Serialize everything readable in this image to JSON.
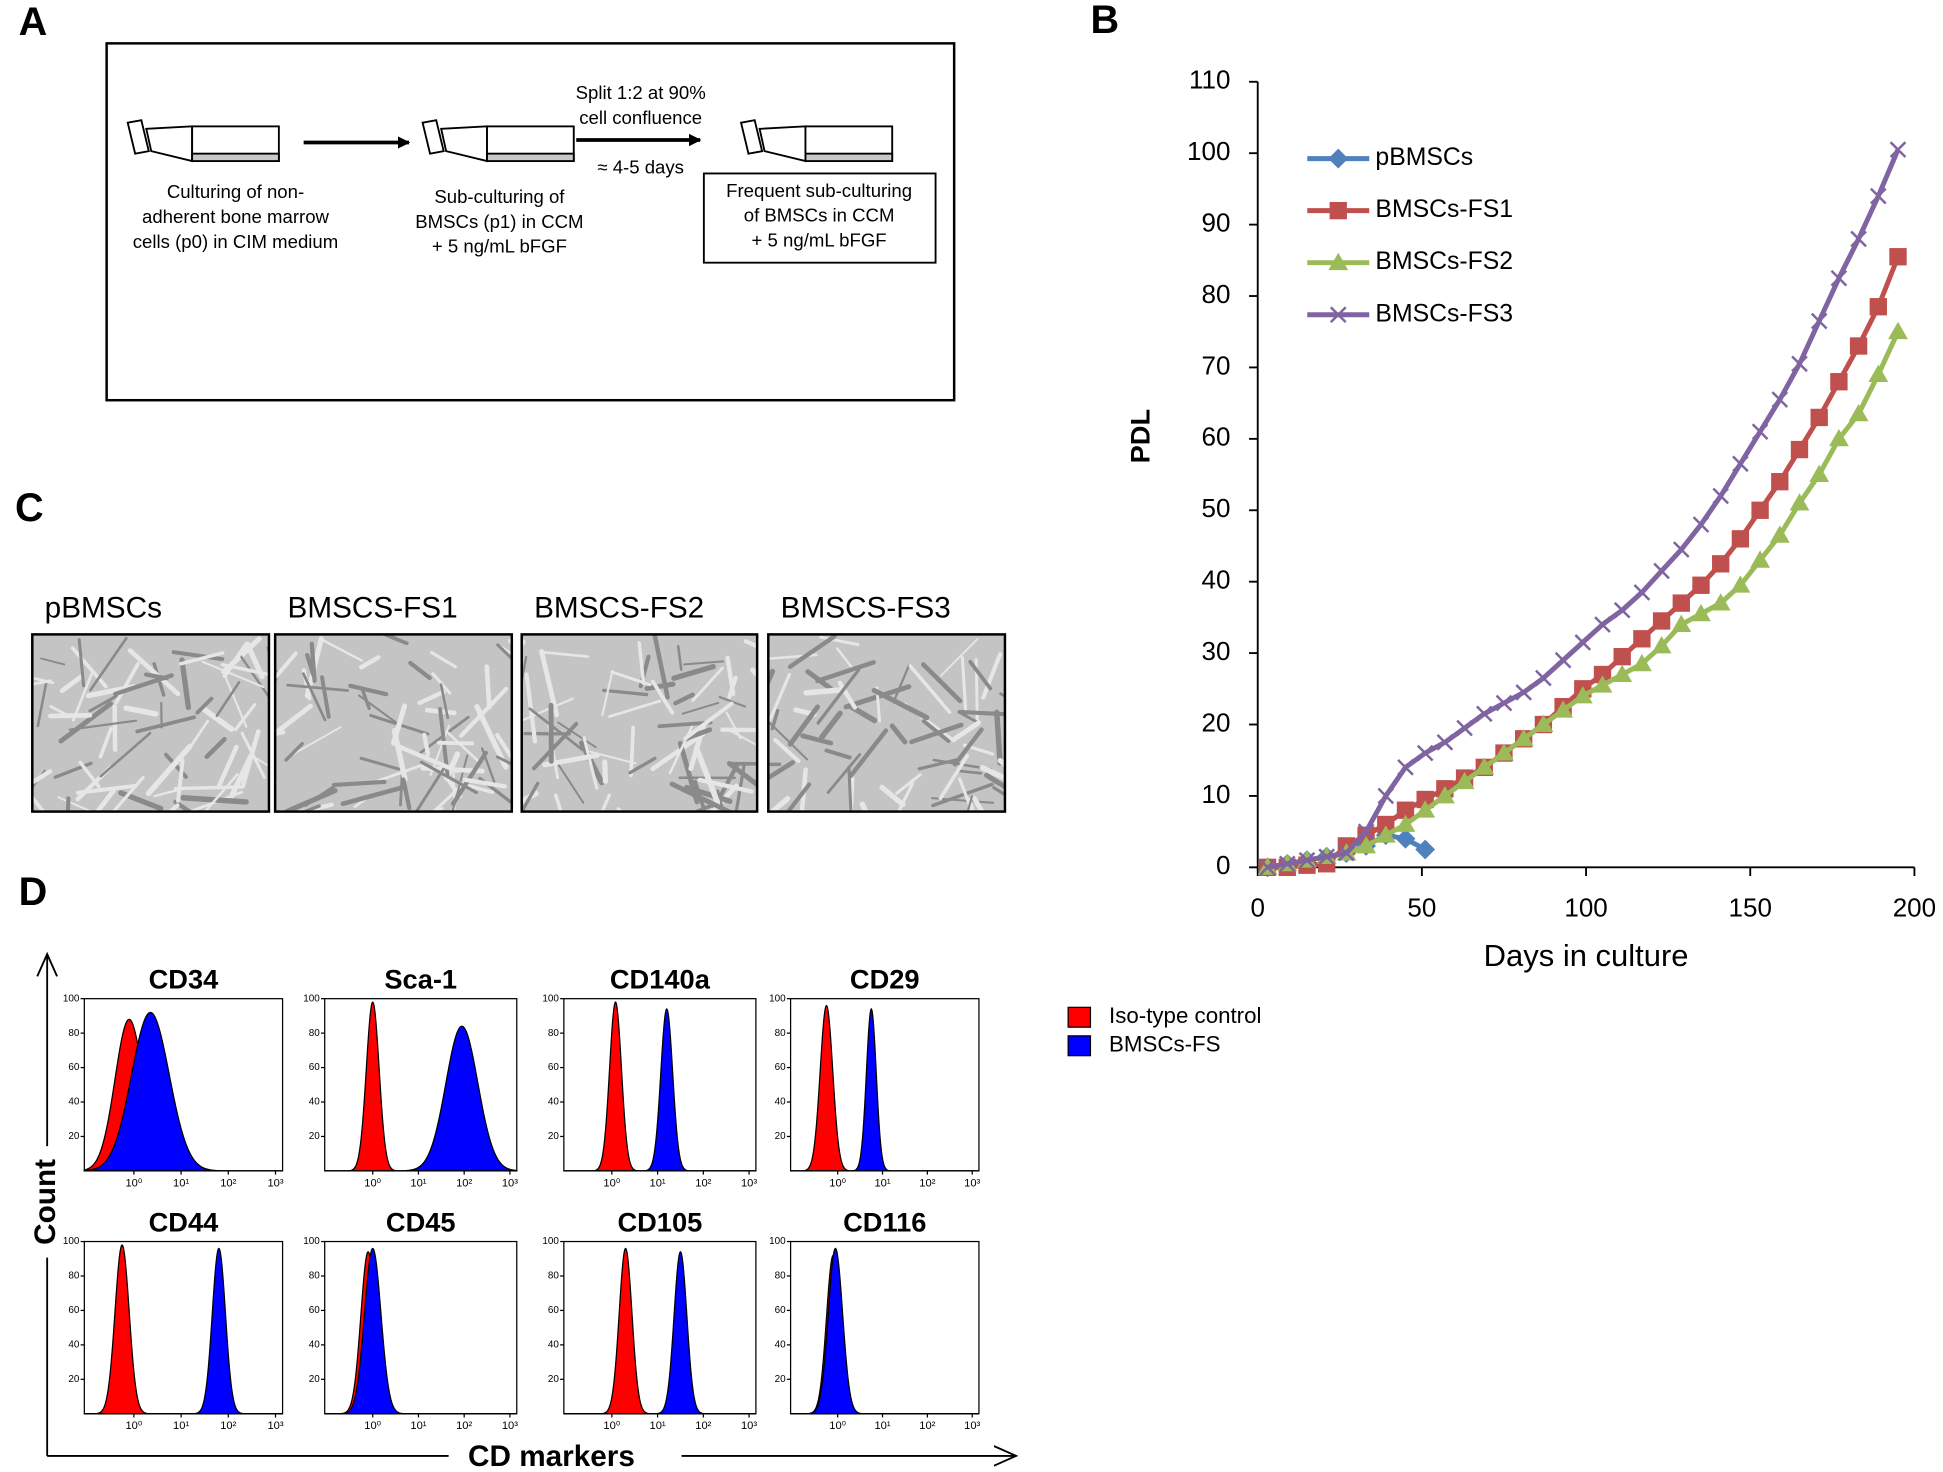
{
  "panel_labels": [
    "A",
    "B",
    "C",
    "D"
  ],
  "panel_a": {
    "step1": [
      "Culturing of non-",
      "adherent bone marrow",
      "cells  (p0) in CIM medium"
    ],
    "step2": [
      "Sub-culturing of",
      "BMSCs (p1)  in CCM",
      "+ 5 ng/mL bFGF"
    ],
    "split": [
      "Split 1:2 at 90%",
      "cell confluence"
    ],
    "duration": "≈ 4-5 days",
    "step3": [
      "Frequent sub-culturing",
      "of BMSCs in CCM",
      "+ 5 ng/mL bFGF"
    ]
  },
  "panel_c": {
    "labels": [
      "pBMSCs",
      "BMSCS-FS1",
      "BMSCS-FS2",
      "BMSCS-FS3"
    ]
  },
  "chart_data": [
    {
      "type": "line",
      "x_label": "Days in culture",
      "y_label": "PDL",
      "x": [
        3,
        9,
        15,
        21,
        27,
        33,
        39,
        45,
        51,
        57,
        63,
        69,
        75,
        81,
        87,
        93,
        99,
        105,
        111,
        117,
        123,
        129,
        135,
        141,
        147,
        153,
        159,
        165,
        171,
        177,
        183,
        189,
        195
      ],
      "xlim": [
        0,
        200
      ],
      "xticks": [
        0,
        50,
        100,
        150,
        200
      ],
      "ylim": [
        0,
        110
      ],
      "yticks": [
        0,
        10,
        20,
        30,
        40,
        50,
        60,
        70,
        80,
        90,
        100,
        110
      ],
      "series": [
        {
          "name": "pBMSCs",
          "color": "#4f81bd",
          "marker": "diamond",
          "values": [
            0,
            0.5,
            1,
            1.5,
            2,
            3,
            4.5,
            4,
            2.5,
            null,
            null,
            null,
            null,
            null,
            null,
            null,
            null,
            null,
            null,
            null,
            null,
            null,
            null,
            null,
            null,
            null,
            null,
            null,
            null,
            null,
            null,
            null,
            null
          ]
        },
        {
          "name": "BMSCs-FS1",
          "color": "#c0504d",
          "marker": "square",
          "values": [
            0,
            0,
            0.3,
            0.5,
            3,
            4.5,
            6,
            8,
            9.5,
            11,
            12.5,
            14,
            16,
            18,
            20,
            22.5,
            25,
            27,
            29.5,
            32,
            34.5,
            37,
            39.5,
            42.5,
            46,
            50,
            54,
            58.5,
            63,
            68,
            73,
            78.5,
            85.5
          ]
        },
        {
          "name": "BMSCs-FS2",
          "color": "#9bbb59",
          "marker": "triangle",
          "values": [
            0,
            0.5,
            1,
            1.5,
            2,
            3,
            4.5,
            6,
            8,
            10,
            12,
            14,
            16,
            18,
            20,
            22,
            24,
            25.5,
            27,
            28.5,
            31,
            34,
            35.5,
            37,
            39.5,
            43,
            46.5,
            51,
            55,
            60,
            63.5,
            69,
            75
          ]
        },
        {
          "name": "BMSCs-FS3",
          "color": "#8064a2",
          "marker": "cross",
          "values": [
            0,
            0.5,
            1,
            1.5,
            2,
            5,
            10,
            14,
            16,
            17.5,
            19.5,
            21.5,
            23,
            24.5,
            26.5,
            29,
            31.5,
            34,
            36,
            38.5,
            41.5,
            44.5,
            48,
            52,
            56.5,
            61,
            65.5,
            70.5,
            76.5,
            82.5,
            88,
            94,
            100.5
          ]
        }
      ]
    },
    {
      "type": "histogram",
      "x_label": "CD markers",
      "y_label": "Count",
      "titles": [
        "CD34",
        "Sca-1",
        "CD140a",
        "CD29",
        "CD44",
        "CD45",
        "CD105",
        "CD116"
      ],
      "xlim": [
        -1.05,
        3.15
      ],
      "xticks": [
        {
          "value": 0,
          "label": "10⁰"
        },
        {
          "value": 1,
          "label": "10¹"
        },
        {
          "value": 2,
          "label": "10²"
        },
        {
          "value": 3,
          "label": "10³"
        }
      ],
      "ylim": [
        0,
        100
      ],
      "yticks": [
        20,
        40,
        60,
        80,
        100
      ],
      "series": [
        {
          "name": "Iso-type control",
          "color": "#ff0000",
          "peaks": [
            [
              -0.1,
              0.3,
              88
            ],
            [
              0,
              0.14,
              98
            ],
            [
              0.08,
              0.13,
              98
            ],
            [
              -0.25,
              0.14,
              96
            ],
            [
              -0.25,
              0.15,
              98
            ],
            [
              -0.1,
              0.16,
              94
            ],
            [
              0.3,
              0.14,
              96
            ],
            [
              -0.1,
              0.15,
              92
            ]
          ]
        },
        {
          "name": "BMSCs-FS",
          "color": "#0000ff",
          "peaks": [
            [
              0.35,
              0.4,
              92
            ],
            [
              1.95,
              0.35,
              84
            ],
            [
              1.2,
              0.13,
              94
            ],
            [
              0.75,
              0.11,
              94
            ],
            [
              1.8,
              0.14,
              96
            ],
            [
              0,
              0.18,
              96
            ],
            [
              1.5,
              0.14,
              94
            ],
            [
              -0.05,
              0.16,
              96
            ]
          ]
        }
      ]
    }
  ]
}
